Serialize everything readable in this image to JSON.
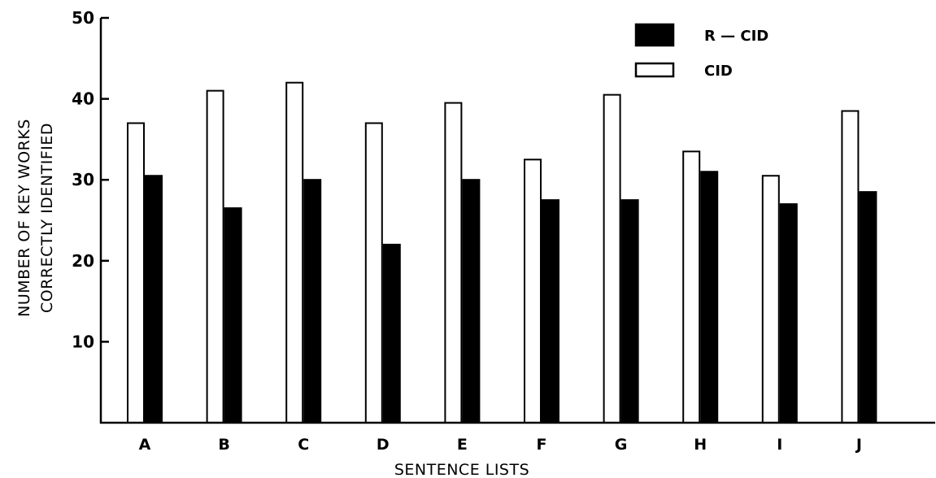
{
  "chart_data": {
    "type": "bar",
    "categories": [
      "A",
      "B",
      "C",
      "D",
      "E",
      "F",
      "G",
      "H",
      "I",
      "J"
    ],
    "series": [
      {
        "name": "CID",
        "fill": "#ffffff",
        "values": [
          37,
          41,
          42,
          37,
          39.5,
          32.5,
          40.5,
          33.5,
          30.5,
          38.5
        ]
      },
      {
        "name": "R — CID",
        "fill": "#000000",
        "values": [
          30.5,
          26.5,
          30,
          22,
          30,
          27.5,
          27.5,
          31,
          27,
          28.5
        ]
      }
    ],
    "legend_order": [
      "R — CID",
      "CID"
    ],
    "ylim": [
      0,
      50
    ],
    "yticks": [
      10,
      20,
      30,
      40,
      50
    ],
    "ytick_labels": [
      "10",
      "20",
      "30",
      "40",
      "50"
    ],
    "ylabel_line1": "NUMBER OF KEY WORKS",
    "ylabel_line2": "CORRECTLY IDENTIFIED",
    "xlabel": "SENTENCE LISTS",
    "legend_position": "top-right",
    "grid": false
  }
}
